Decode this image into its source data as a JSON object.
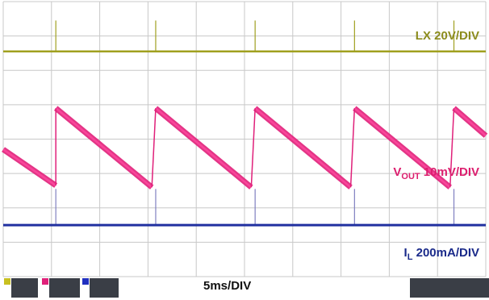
{
  "channel_labels": {
    "lx": {
      "main": "LX 20V/DIV",
      "color": "#8c8c1e"
    },
    "vout": {
      "prefix": "V",
      "sub": "OUT",
      "rest": " 10mV/DIV",
      "color": "#dc1e6e"
    },
    "il": {
      "prefix": "I",
      "sub": "L",
      "rest": " 200mA/DIV",
      "color": "#1a2a8a"
    }
  },
  "timebase_label": "5ms/DIV",
  "colors": {
    "grid": "#c8c8c8",
    "lx": "#a0a020",
    "vout": "#e0207a",
    "il": "#2030a0",
    "spike_il": "#8080c0"
  },
  "chart_data": {
    "type": "line",
    "title": "",
    "xlabel": "5ms/DIV",
    "ylabel": "",
    "grid": true,
    "divisions": {
      "x": 10,
      "y": 8
    },
    "x_unit": "div",
    "ylim": [
      -4,
      4
    ],
    "xlim": [
      0,
      10
    ],
    "series": [
      {
        "name": "LX 20V/DIV",
        "color": "#a0a020",
        "baseline": 2.55,
        "spikes_at_x": [
          1.09,
          3.16,
          5.22,
          7.28,
          9.34
        ],
        "spike_top": 3.45
      },
      {
        "name": "VOUT 10mV/DIV",
        "color": "#e0207a",
        "sawtooth": [
          {
            "x_start": 0.0,
            "y_start": -0.3,
            "x_end": 1.09,
            "y_end": -1.35
          },
          {
            "x_start": 1.09,
            "y_start": 0.9,
            "x_end": 3.08,
            "y_end": -1.4
          },
          {
            "x_start": 3.16,
            "y_start": 0.9,
            "x_end": 5.14,
            "y_end": -1.4
          },
          {
            "x_start": 5.22,
            "y_start": 0.9,
            "x_end": 7.2,
            "y_end": -1.4
          },
          {
            "x_start": 7.28,
            "y_start": 0.9,
            "x_end": 9.26,
            "y_end": -1.4
          },
          {
            "x_start": 9.34,
            "y_start": 0.9,
            "x_end": 10.0,
            "y_end": 0.1
          }
        ]
      },
      {
        "name": "IL 200mA/DIV",
        "color": "#2030a0",
        "baseline": -2.5,
        "spikes_at_x": [
          1.09,
          3.16,
          5.22,
          7.28,
          9.34
        ],
        "spike_top": -1.45
      }
    ]
  }
}
